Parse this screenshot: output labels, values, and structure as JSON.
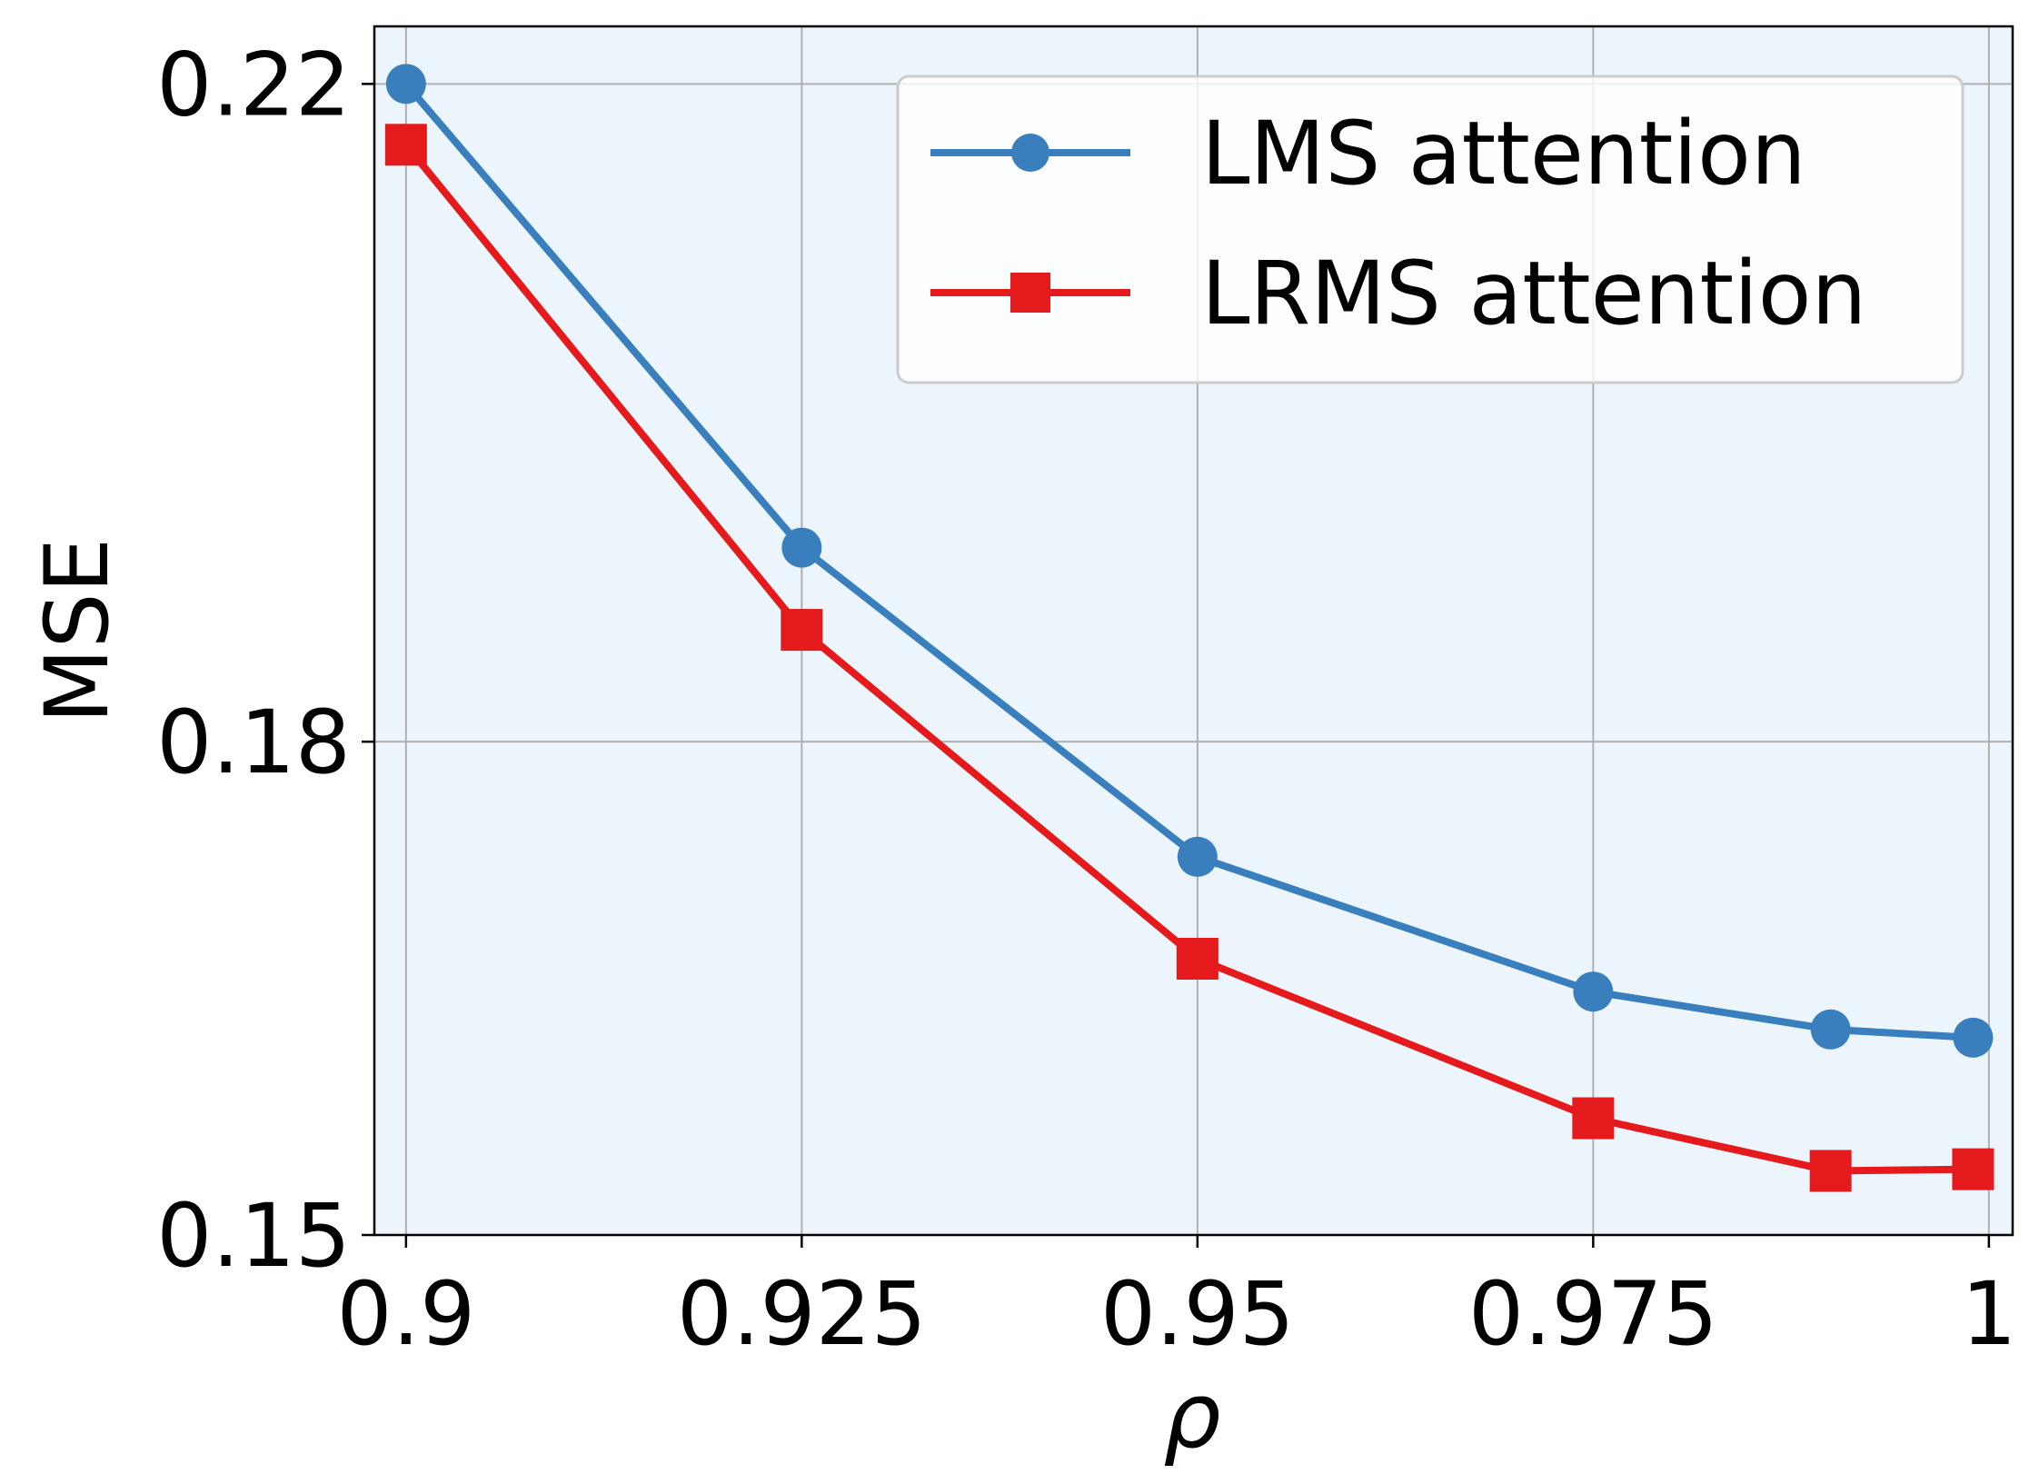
{
  "chart_data": {
    "type": "line",
    "title": "",
    "xlabel": "ρ",
    "ylabel": "MSE",
    "xlim": [
      0.898,
      1.0015
    ],
    "ylim": [
      0.15,
      0.2235
    ],
    "x_ticks": [
      0.9,
      0.925,
      0.95,
      0.975,
      1.0
    ],
    "x_tick_labels": [
      "0.9",
      "0.925",
      "0.95",
      "0.975",
      "1"
    ],
    "y_ticks": [
      0.15,
      0.18,
      0.22
    ],
    "y_tick_labels": [
      "0.15",
      "0.18",
      "0.22"
    ],
    "grid": true,
    "legend_position": "top-right",
    "background_color": "#ebf5fb",
    "series": [
      {
        "name": "LMS attention",
        "color": "#3a7fbd",
        "marker": "circle",
        "x": [
          0.9,
          0.925,
          0.95,
          0.975,
          0.99,
          0.999
        ],
        "y": [
          0.22,
          0.1918,
          0.173,
          0.1648,
          0.1625,
          0.162
        ]
      },
      {
        "name": "LRMS attention",
        "color": "#e41a1c",
        "marker": "square",
        "x": [
          0.9,
          0.925,
          0.95,
          0.975,
          0.99,
          0.999
        ],
        "y": [
          0.2163,
          0.1868,
          0.1668,
          0.1571,
          0.1539,
          0.154
        ]
      }
    ]
  }
}
